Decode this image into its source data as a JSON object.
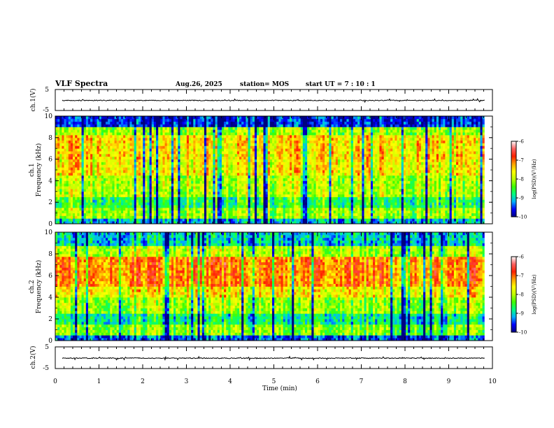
{
  "header": {
    "title": "VLF Spectra",
    "date": "Aug.26, 2025",
    "station": "station= MOS",
    "start": "start  UT =   7 : 10 : 1"
  },
  "chart_data": [
    {
      "type": "line",
      "name": "ch1-waveform",
      "ylabel": "ch.1(V)",
      "ylim": [
        -5,
        5
      ],
      "yticks": [
        "5",
        "-5"
      ],
      "level": -0.2,
      "x_range": [
        0,
        9.82
      ]
    },
    {
      "type": "heatmap",
      "name": "ch1-spectrogram",
      "ylabel_line1": "ch.1",
      "ylabel_line2": "Frequency (kHz)",
      "ylim": [
        0,
        10
      ],
      "yticks": [
        "0",
        "2",
        "4",
        "6",
        "8",
        "10"
      ],
      "x_range": [
        0,
        9.82
      ],
      "bands": [
        {
          "f0": 0.0,
          "f1": 0.5,
          "level": -9.1
        },
        {
          "f0": 0.5,
          "f1": 1.5,
          "level": -8.1
        },
        {
          "f0": 1.5,
          "f1": 2.5,
          "level": -8.6
        },
        {
          "f0": 2.5,
          "f1": 4.5,
          "level": -8.0
        },
        {
          "f0": 4.5,
          "f1": 6.0,
          "level": -7.6
        },
        {
          "f0": 6.0,
          "f1": 8.3,
          "level": -7.5
        },
        {
          "f0": 8.3,
          "f1": 9.0,
          "level": -8.1
        },
        {
          "f0": 9.0,
          "f1": 10.0,
          "level": -9.6
        }
      ],
      "colorbar": {
        "label": "log(PSD)(V²/Hz)",
        "range": [
          -10,
          -6
        ],
        "ticks": [
          "-6",
          "-7",
          "-8",
          "-9",
          "-10"
        ]
      }
    },
    {
      "type": "heatmap",
      "name": "ch2-spectrogram",
      "ylabel_line1": "ch.2",
      "ylabel_line2": "Frequency (kHz)",
      "ylim": [
        0,
        10
      ],
      "yticks": [
        "0",
        "2",
        "4",
        "6",
        "8",
        "10"
      ],
      "x_range": [
        0,
        9.82
      ],
      "bands": [
        {
          "f0": 0.0,
          "f1": 0.5,
          "level": -9.4
        },
        {
          "f0": 0.5,
          "f1": 1.5,
          "level": -8.2
        },
        {
          "f0": 1.5,
          "f1": 2.5,
          "level": -8.8
        },
        {
          "f0": 2.5,
          "f1": 4.0,
          "level": -8.1
        },
        {
          "f0": 4.0,
          "f1": 5.0,
          "level": -7.6
        },
        {
          "f0": 5.0,
          "f1": 7.8,
          "level": -7.1
        },
        {
          "f0": 7.8,
          "f1": 8.7,
          "level": -8.0
        },
        {
          "f0": 8.7,
          "f1": 10.0,
          "level": -9.0
        }
      ],
      "colorbar": {
        "label": "log(PSD)(V²/Hz)",
        "range": [
          -10,
          -6
        ],
        "ticks": [
          "-6",
          "-7",
          "-8",
          "-9",
          "-10"
        ]
      }
    },
    {
      "type": "line",
      "name": "ch2-waveform",
      "ylabel": "ch.2(V)",
      "ylim": [
        -5,
        5
      ],
      "yticks": [
        "5",
        "-5"
      ],
      "level": -0.2,
      "x_range": [
        0,
        9.82
      ]
    }
  ],
  "x_axis": {
    "label": "Time  (min)",
    "range": [
      0,
      10
    ],
    "ticks": [
      "0",
      "1",
      "2",
      "3",
      "4",
      "5",
      "6",
      "7",
      "8",
      "9",
      "10"
    ]
  },
  "colormap": [
    "#000080",
    "#0000ff",
    "#00b0ff",
    "#00ff80",
    "#40ff00",
    "#c0ff00",
    "#ffff00",
    "#ffa000",
    "#ff2000",
    "#ff6060",
    "#ffffff"
  ]
}
